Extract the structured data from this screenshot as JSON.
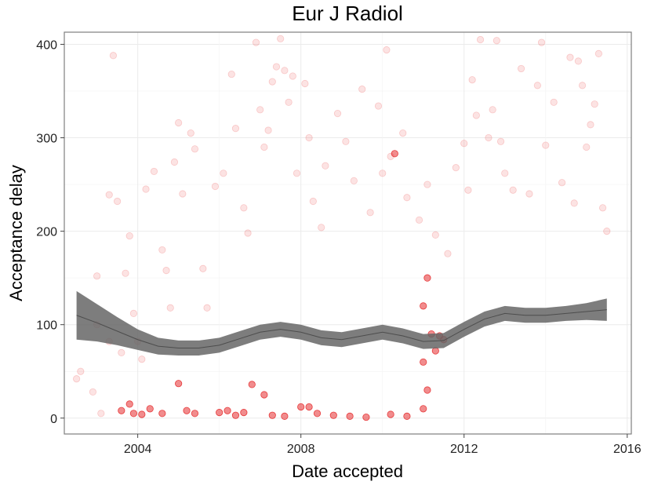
{
  "chart_data": {
    "type": "scatter",
    "title": "Eur J Radiol",
    "xlabel": "Date accepted",
    "ylabel": "Acceptance delay",
    "xlim": [
      2002.2,
      2016.1
    ],
    "ylim": [
      -17,
      413
    ],
    "x_ticks": [
      2004,
      2008,
      2012,
      2016
    ],
    "x_tick_labels": [
      "2004",
      "2008",
      "2012",
      "2016"
    ],
    "y_ticks": [
      0,
      100,
      200,
      300,
      400
    ],
    "y_tick_labels": [
      "0",
      "100",
      "200",
      "300",
      "400"
    ],
    "grid": true,
    "legend": "none",
    "point_color": "#e41a1c",
    "point_alpha": 0.12,
    "point_alpha_dense": 0.5,
    "smooth_color": "#666666",
    "series": [
      {
        "kind": "scatter",
        "points": [
          [
            2002.5,
            42
          ],
          [
            2002.6,
            50
          ],
          [
            2002.9,
            28
          ],
          [
            2003.0,
            152
          ],
          [
            2003.0,
            100
          ],
          [
            2003.1,
            5
          ],
          [
            2003.3,
            82
          ],
          [
            2003.3,
            239
          ],
          [
            2003.4,
            388
          ],
          [
            2003.5,
            232
          ],
          [
            2003.6,
            70
          ],
          [
            2003.7,
            155
          ],
          [
            2003.8,
            195
          ],
          [
            2003.9,
            112
          ],
          [
            2004.0,
            82
          ],
          [
            2004.1,
            63
          ],
          [
            2004.2,
            245
          ],
          [
            2004.4,
            264
          ],
          [
            2004.6,
            180
          ],
          [
            2004.7,
            158
          ],
          [
            2004.8,
            118
          ],
          [
            2004.9,
            274
          ],
          [
            2005.0,
            316
          ],
          [
            2005.1,
            240
          ],
          [
            2005.3,
            305
          ],
          [
            2005.4,
            288
          ],
          [
            2005.6,
            160
          ],
          [
            2005.7,
            118
          ],
          [
            2005.9,
            248
          ],
          [
            2006.1,
            262
          ],
          [
            2006.3,
            368
          ],
          [
            2006.4,
            310
          ],
          [
            2006.6,
            225
          ],
          [
            2006.7,
            198
          ],
          [
            2006.9,
            402
          ],
          [
            2007.0,
            330
          ],
          [
            2007.1,
            290
          ],
          [
            2007.2,
            308
          ],
          [
            2007.3,
            360
          ],
          [
            2007.4,
            376
          ],
          [
            2007.5,
            406
          ],
          [
            2007.6,
            372
          ],
          [
            2007.7,
            338
          ],
          [
            2007.8,
            366
          ],
          [
            2007.9,
            262
          ],
          [
            2008.1,
            358
          ],
          [
            2008.2,
            300
          ],
          [
            2008.3,
            232
          ],
          [
            2008.5,
            204
          ],
          [
            2008.6,
            270
          ],
          [
            2008.9,
            326
          ],
          [
            2009.1,
            296
          ],
          [
            2009.3,
            254
          ],
          [
            2009.5,
            352
          ],
          [
            2009.7,
            220
          ],
          [
            2009.9,
            334
          ],
          [
            2010.0,
            262
          ],
          [
            2010.1,
            394
          ],
          [
            2010.2,
            280
          ],
          [
            2010.5,
            305
          ],
          [
            2010.6,
            236
          ],
          [
            2010.9,
            212
          ],
          [
            2011.1,
            250
          ],
          [
            2011.3,
            196
          ],
          [
            2011.6,
            176
          ],
          [
            2011.8,
            268
          ],
          [
            2012.0,
            294
          ],
          [
            2012.1,
            244
          ],
          [
            2012.2,
            362
          ],
          [
            2012.3,
            324
          ],
          [
            2012.4,
            405
          ],
          [
            2012.6,
            300
          ],
          [
            2012.7,
            330
          ],
          [
            2012.8,
            404
          ],
          [
            2012.9,
            296
          ],
          [
            2013.0,
            262
          ],
          [
            2013.2,
            244
          ],
          [
            2013.4,
            374
          ],
          [
            2013.6,
            240
          ],
          [
            2013.8,
            356
          ],
          [
            2013.9,
            402
          ],
          [
            2014.0,
            292
          ],
          [
            2014.2,
            338
          ],
          [
            2014.4,
            252
          ],
          [
            2014.6,
            386
          ],
          [
            2014.7,
            230
          ],
          [
            2014.8,
            382
          ],
          [
            2014.9,
            356
          ],
          [
            2015.0,
            290
          ],
          [
            2015.1,
            314
          ],
          [
            2015.2,
            336
          ],
          [
            2015.3,
            390
          ],
          [
            2015.4,
            225
          ],
          [
            2015.5,
            200
          ]
        ]
      },
      {
        "kind": "scatter-dense",
        "points": [
          [
            2003.6,
            8
          ],
          [
            2003.8,
            15
          ],
          [
            2003.9,
            5
          ],
          [
            2004.1,
            4
          ],
          [
            2004.3,
            10
          ],
          [
            2004.6,
            5
          ],
          [
            2005.0,
            37
          ],
          [
            2005.2,
            8
          ],
          [
            2005.4,
            5
          ],
          [
            2006.0,
            6
          ],
          [
            2006.2,
            8
          ],
          [
            2006.4,
            3
          ],
          [
            2006.6,
            6
          ],
          [
            2006.8,
            36
          ],
          [
            2007.1,
            25
          ],
          [
            2007.3,
            3
          ],
          [
            2007.6,
            2
          ],
          [
            2008.0,
            12
          ],
          [
            2008.2,
            12
          ],
          [
            2008.4,
            5
          ],
          [
            2008.8,
            3
          ],
          [
            2009.2,
            2
          ],
          [
            2009.6,
            1
          ],
          [
            2010.2,
            4
          ],
          [
            2010.3,
            283
          ],
          [
            2010.6,
            2
          ],
          [
            2011.0,
            120
          ],
          [
            2011.0,
            60
          ],
          [
            2011.1,
            30
          ],
          [
            2011.1,
            150
          ],
          [
            2011.2,
            90
          ],
          [
            2011.3,
            72
          ],
          [
            2011.4,
            88
          ],
          [
            2011.5,
            84
          ],
          [
            2011.0,
            10
          ]
        ]
      },
      {
        "kind": "smooth",
        "x": [
          2002.5,
          2003.0,
          2003.5,
          2004.0,
          2004.5,
          2005.0,
          2005.5,
          2006.0,
          2006.5,
          2007.0,
          2007.5,
          2008.0,
          2008.5,
          2009.0,
          2009.5,
          2010.0,
          2010.5,
          2011.0,
          2011.5,
          2012.0,
          2012.5,
          2013.0,
          2013.5,
          2014.0,
          2014.5,
          2015.0,
          2015.5
        ],
        "y": [
          110,
          102,
          93,
          84,
          77,
          75,
          75,
          78,
          85,
          92,
          95,
          92,
          86,
          84,
          88,
          92,
          88,
          82,
          83,
          95,
          106,
          112,
          110,
          110,
          112,
          114,
          116
        ],
        "band": [
          26,
          20,
          15,
          11,
          9,
          8,
          8,
          8,
          8,
          8,
          8,
          8,
          8,
          8,
          8,
          8,
          8,
          8,
          8,
          8,
          8,
          8,
          8,
          8,
          8,
          9,
          12
        ]
      }
    ]
  }
}
